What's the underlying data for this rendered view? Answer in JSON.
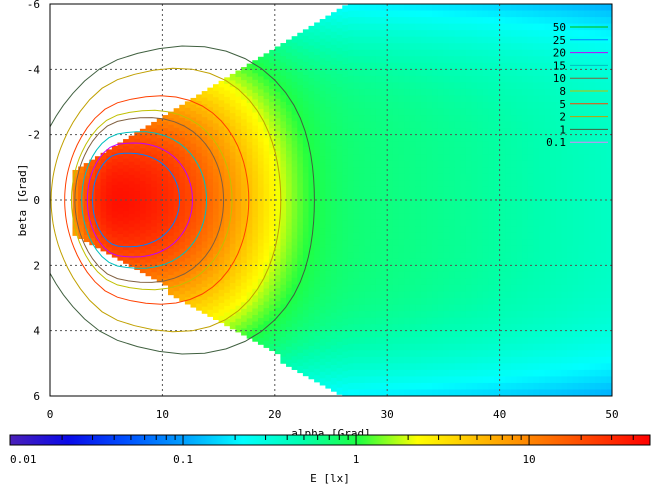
{
  "chart_data": {
    "type": "heatmap",
    "xlabel": "alpha [Grad]",
    "ylabel": "beta [Grad]",
    "colorbar_label": "E [lx]",
    "xlim": [
      0,
      50
    ],
    "ylim": [
      -6,
      6
    ],
    "y_inverted": true,
    "x_ticks": [
      0,
      10,
      20,
      30,
      40,
      50
    ],
    "y_ticks": [
      -6,
      -4,
      -2,
      0,
      2,
      4,
      6
    ],
    "x_tick_labels": [
      "0",
      "10",
      "20",
      "30",
      "40",
      "50"
    ],
    "y_tick_labels": [
      "-6",
      "-4",
      "-2",
      "0",
      "2",
      "4",
      "6"
    ],
    "grid": true,
    "colorbar": {
      "scale": "log",
      "range": [
        0.01,
        50
      ],
      "tick_labels": [
        "0.01",
        "0.1",
        "1",
        "10"
      ],
      "tick_values": [
        0.01,
        0.1,
        1,
        10
      ],
      "colors": [
        "#4a1fb8",
        "#0a0ae8",
        "#0050ff",
        "#00a0ff",
        "#00ffff",
        "#00ffb0",
        "#20ff40",
        "#ffff00",
        "#ffc000",
        "#ff8000",
        "#ff4000",
        "#ff0000"
      ]
    },
    "contour_legend": {
      "placement": "top-right",
      "entries": [
        {
          "label": "50",
          "color": "#00c000"
        },
        {
          "label": "25",
          "color": "#0080ff"
        },
        {
          "label": "20",
          "color": "#c000ff"
        },
        {
          "label": "15",
          "color": "#00c0c0"
        },
        {
          "label": "10",
          "color": "#806040"
        },
        {
          "label": "8",
          "color": "#c0c000"
        },
        {
          "label": "5",
          "color": "#ff4000"
        },
        {
          "label": "2",
          "color": "#c0a000"
        },
        {
          "label": "1",
          "color": "#406040"
        },
        {
          "label": "0.1",
          "color": "#e080ff"
        }
      ]
    },
    "field": {
      "source_alpha": 0,
      "source_beta": 0,
      "peak_alpha": 6,
      "peak_lux": 40,
      "bands_alpha_end": [
        30,
        32,
        34,
        38,
        42,
        46,
        50
      ]
    }
  }
}
